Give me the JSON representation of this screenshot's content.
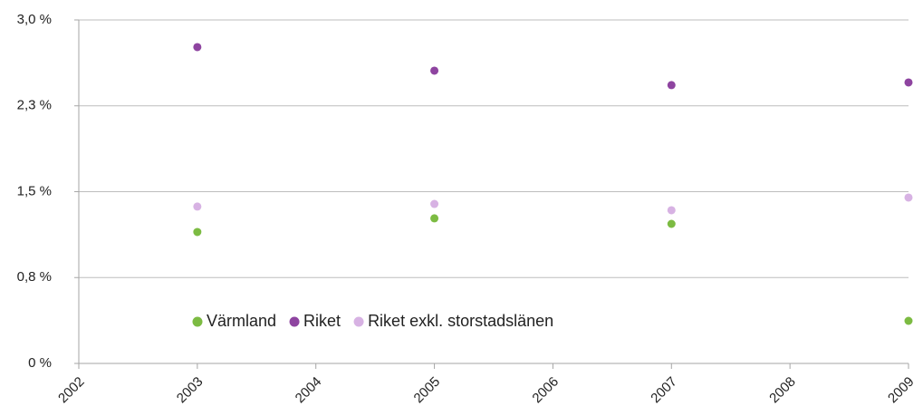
{
  "chart_data": {
    "type": "scatter",
    "x": [
      2003,
      2005,
      2007,
      2009
    ],
    "series": [
      {
        "name": "Värmland",
        "color": "#7cbb42",
        "values": [
          1.148,
          1.267,
          1.219,
          0.372
        ]
      },
      {
        "name": "Riket",
        "color": "#8e44a0",
        "values": [
          2.763,
          2.557,
          2.431,
          2.454
        ]
      },
      {
        "name": "Riket exkl. storstadslänen",
        "color": "#d7b2e3",
        "values": [
          1.37,
          1.393,
          1.338,
          1.449
        ]
      }
    ],
    "xlim": [
      2002,
      2009
    ],
    "xticks": [
      2002,
      2003,
      2004,
      2005,
      2006,
      2007,
      2008,
      2009
    ],
    "ylim": [
      0,
      3.0
    ],
    "yticks": [
      {
        "value": 0,
        "label": "0 %"
      },
      {
        "value": 0.75,
        "label": "0,8 %"
      },
      {
        "value": 1.5,
        "label": "1,5 %"
      },
      {
        "value": 2.25,
        "label": "2,3 %"
      },
      {
        "value": 3.0,
        "label": "3,0 %"
      }
    ],
    "grid": true,
    "legend": "inside-bottom-left"
  }
}
